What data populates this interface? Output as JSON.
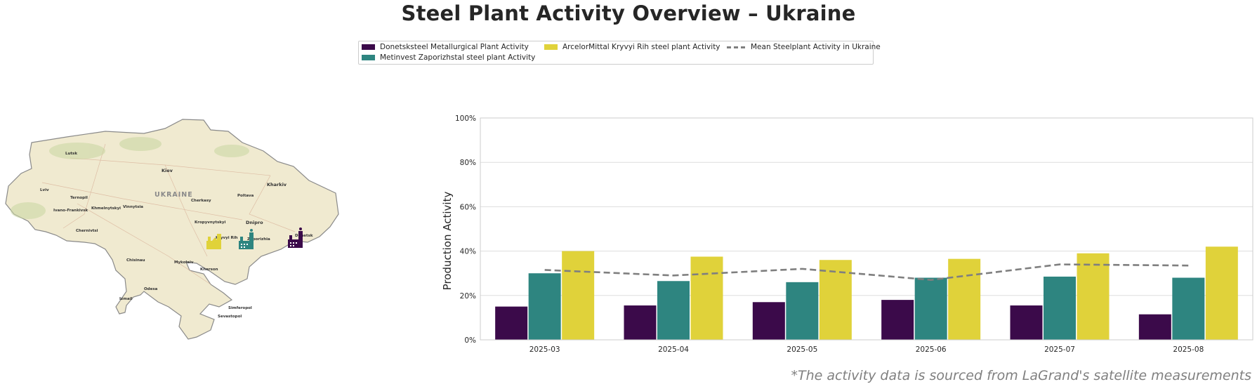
{
  "title": "Steel Plant Activity Overview – Ukraine",
  "source_note": "*The activity data is sourced from LaGrand's satellite measurements",
  "colors": {
    "donetsk": "#3b0a4a",
    "zaporizh": "#2e8580",
    "kryvyi": "#e0d23a",
    "mean": "#7f7f7f",
    "map_fill": "#f0ead0",
    "map_border": "#8a8a8a"
  },
  "legend": {
    "donetsk": "Donetsksteel Metallurgical Plant Activity",
    "zaporizh": "Metinvest Zaporizhstal steel plant Activity",
    "kryvyi": "ArcelorMittal Kryvyi Rih steel plant Activity",
    "mean": "Mean Steelplant Activity in Ukraine"
  },
  "map": {
    "country_label": "UKRAINE",
    "cities": [
      "Lutsk",
      "Kiev",
      "Kharkiv",
      "Lviv",
      "Ternopil",
      "Khmelnytskyi",
      "Vinnytsia",
      "Ivano-Frankivsk",
      "Cherkasy",
      "Poltava",
      "Chernivtsi",
      "Kropyvnytskyi",
      "Dnipro",
      "Kryvyi Rih",
      "Zaporizhia",
      "Donetsk",
      "Mykolaiv",
      "Kherson",
      "Simferopol",
      "Sevastopol",
      "Odesa",
      "Chisinau",
      "Izmail"
    ],
    "plant_icons": [
      "kryvyi-factory-icon",
      "zaporizh-factory-icon",
      "donetsk-factory-icon"
    ]
  },
  "chart_data": {
    "type": "bar",
    "categories": [
      "2025-03",
      "2025-04",
      "2025-05",
      "2025-06",
      "2025-07",
      "2025-08"
    ],
    "series": [
      {
        "name": "Donetsksteel Metallurgical Plant Activity",
        "values": [
          15,
          15.5,
          17,
          18,
          15.5,
          11.5
        ]
      },
      {
        "name": "Metinvest Zaporizhstal steel plant Activity",
        "values": [
          30,
          26.5,
          26,
          28,
          28.5,
          28
        ]
      },
      {
        "name": "ArcelorMittal Kryvyi Rih steel plant Activity",
        "values": [
          40,
          37.5,
          36,
          36.5,
          39,
          42
        ]
      }
    ],
    "line": {
      "name": "Mean Steelplant Activity in Ukraine",
      "values": [
        31.5,
        29,
        32,
        27,
        34,
        33.5
      ]
    },
    "ylabel": "Production Activity",
    "xlabel": "",
    "ylim": [
      0,
      100
    ],
    "yticks": [
      "0%",
      "20%",
      "40%",
      "60%",
      "80%",
      "100%"
    ],
    "grid": true,
    "legend_position": "top-center"
  }
}
